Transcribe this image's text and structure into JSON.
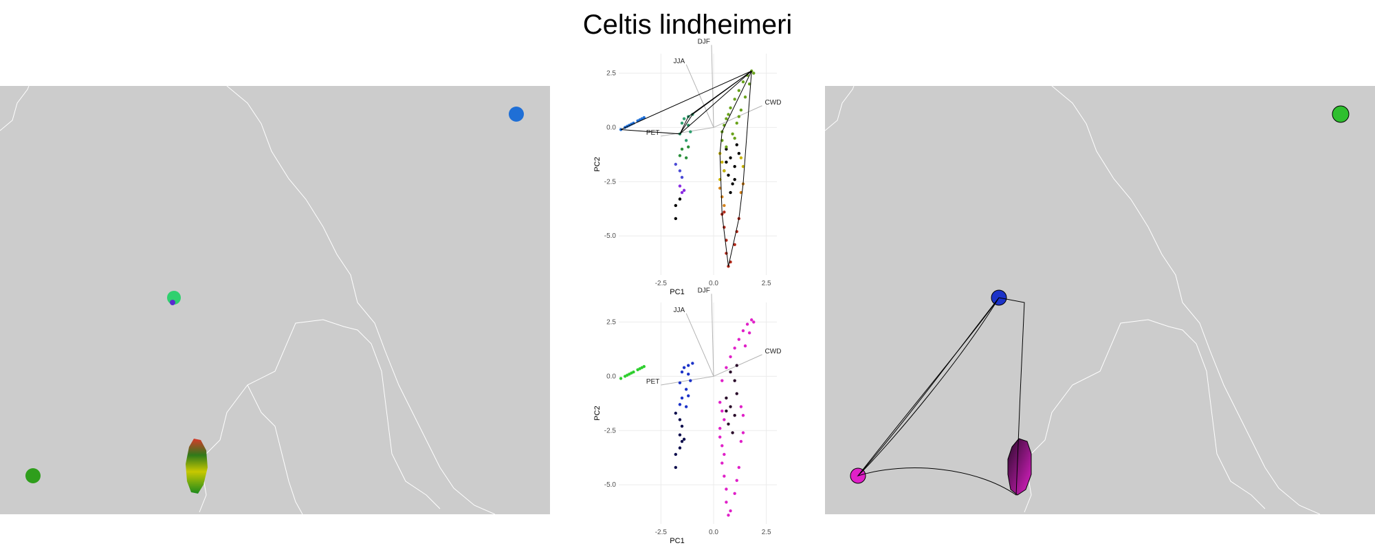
{
  "title": "Celtis lindheimeri",
  "colors": {
    "map_land": "#cccccc",
    "border": "#ffffff",
    "grid": "#ebebeb",
    "vector": "#b3b3b3",
    "hull": "#000000"
  },
  "chart_data": [
    {
      "type": "scatter",
      "panel": "top",
      "title": "",
      "xlabel": "PC1",
      "ylabel": "PC2",
      "xlim": [
        -4.5,
        3.0
      ],
      "ylim": [
        -6.8,
        3.4
      ],
      "x_ticks": [
        "-2.5",
        "0.0",
        "2.5"
      ],
      "y_ticks": [
        "2.5",
        "0.0",
        "-2.5",
        "-5.0"
      ],
      "vectors": [
        {
          "label": "DJF",
          "x": -0.1,
          "y": 3.8
        },
        {
          "label": "JJA",
          "x": -1.3,
          "y": 2.9
        },
        {
          "label": "CWD",
          "x": 2.3,
          "y": 1.0
        },
        {
          "label": "PET",
          "x": -2.5,
          "y": -0.4
        }
      ],
      "series": [
        {
          "color": "#1f6fd6",
          "points": [
            [
              -4.4,
              -0.1
            ],
            [
              -4.1,
              0.05
            ],
            [
              -3.8,
              0.2
            ],
            [
              -3.5,
              0.35
            ],
            [
              -3.3,
              0.45
            ],
            [
              -4.2,
              0.0
            ],
            [
              -3.9,
              0.15
            ],
            [
              -3.6,
              0.3
            ],
            [
              -3.4,
              0.4
            ],
            [
              -4.0,
              0.1
            ]
          ]
        },
        {
          "color": "#2e9e6e",
          "points": [
            [
              -1.4,
              0.4
            ],
            [
              -1.2,
              0.1
            ],
            [
              -1.6,
              -0.3
            ],
            [
              -1.3,
              -0.6
            ],
            [
              -1.1,
              -0.2
            ],
            [
              -1.5,
              0.2
            ],
            [
              -1.0,
              0.6
            ],
            [
              -1.2,
              0.5
            ]
          ]
        },
        {
          "color": "#2a8f3a",
          "points": [
            [
              -1.5,
              -1.0
            ],
            [
              -1.3,
              -1.4
            ],
            [
              -1.2,
              -0.9
            ],
            [
              -1.6,
              -1.3
            ]
          ]
        },
        {
          "color": "#4b4bd6",
          "points": [
            [
              -1.8,
              -1.7
            ],
            [
              -1.6,
              -2.0
            ],
            [
              -1.5,
              -2.3
            ]
          ]
        },
        {
          "color": "#8a2be2",
          "points": [
            [
              -1.6,
              -2.7
            ],
            [
              -1.4,
              -2.9
            ],
            [
              -1.5,
              -3.0
            ]
          ]
        },
        {
          "color": "#000000",
          "points": [
            [
              -1.8,
              -3.6
            ],
            [
              -1.8,
              -4.2
            ],
            [
              -1.6,
              -3.3
            ],
            [
              0.6,
              -1.0
            ],
            [
              0.8,
              -1.4
            ],
            [
              1.0,
              -1.8
            ],
            [
              0.7,
              -2.2
            ],
            [
              0.9,
              -2.6
            ],
            [
              1.1,
              -0.8
            ],
            [
              0.6,
              -1.6
            ],
            [
              1.0,
              -2.4
            ],
            [
              0.8,
              -3.0
            ],
            [
              0.5,
              -2.0
            ],
            [
              1.2,
              -1.2
            ]
          ]
        },
        {
          "color": "#6aa31c",
          "points": [
            [
              0.4,
              -0.2
            ],
            [
              0.6,
              0.4
            ],
            [
              0.8,
              0.9
            ],
            [
              1.0,
              1.3
            ],
            [
              1.2,
              1.7
            ],
            [
              1.4,
              2.1
            ],
            [
              1.6,
              2.4
            ],
            [
              1.8,
              2.6
            ],
            [
              0.5,
              0.1
            ],
            [
              0.7,
              0.6
            ],
            [
              0.9,
              -0.3
            ],
            [
              1.1,
              0.2
            ],
            [
              1.3,
              0.8
            ],
            [
              1.5,
              1.4
            ],
            [
              1.7,
              2.0
            ],
            [
              1.9,
              2.5
            ],
            [
              0.4,
              -0.6
            ],
            [
              0.6,
              -0.9
            ],
            [
              1.0,
              -0.5
            ],
            [
              1.2,
              0.5
            ]
          ]
        },
        {
          "color": "#c8b400",
          "points": [
            [
              0.3,
              -1.2
            ],
            [
              0.4,
              -1.6
            ],
            [
              0.5,
              -2.0
            ],
            [
              1.3,
              -1.4
            ],
            [
              1.4,
              -1.8
            ],
            [
              0.3,
              -2.4
            ]
          ]
        },
        {
          "color": "#d4831d",
          "points": [
            [
              0.3,
              -2.8
            ],
            [
              0.4,
              -3.2
            ],
            [
              1.4,
              -2.6
            ],
            [
              1.3,
              -3.0
            ],
            [
              0.5,
              -3.6
            ]
          ]
        },
        {
          "color": "#b22a1a",
          "points": [
            [
              0.4,
              -4.0
            ],
            [
              0.5,
              -4.6
            ],
            [
              0.6,
              -5.2
            ],
            [
              0.6,
              -5.8
            ],
            [
              0.7,
              -6.4
            ],
            [
              0.8,
              -6.2
            ],
            [
              1.0,
              -5.4
            ],
            [
              1.1,
              -4.8
            ],
            [
              1.2,
              -4.2
            ],
            [
              0.5,
              -3.9
            ]
          ]
        }
      ]
    },
    {
      "type": "scatter",
      "panel": "bottom",
      "title": "",
      "xlabel": "PC1",
      "ylabel": "PC2",
      "xlim": [
        -4.5,
        3.0
      ],
      "ylim": [
        -6.8,
        3.4
      ],
      "x_ticks": [
        "-2.5",
        "0.0",
        "2.5"
      ],
      "y_ticks": [
        "2.5",
        "0.0",
        "-2.5",
        "-5.0"
      ],
      "vectors": [
        {
          "label": "DJF",
          "x": -0.1,
          "y": 3.8
        },
        {
          "label": "JJA",
          "x": -1.3,
          "y": 2.9
        },
        {
          "label": "CWD",
          "x": 2.3,
          "y": 1.0
        },
        {
          "label": "PET",
          "x": -2.5,
          "y": -0.4
        }
      ],
      "series": [
        {
          "color": "#2fcf2f",
          "points": [
            [
              -4.4,
              -0.1
            ],
            [
              -4.1,
              0.05
            ],
            [
              -3.8,
              0.2
            ],
            [
              -3.5,
              0.35
            ],
            [
              -3.3,
              0.45
            ],
            [
              -4.2,
              0.0
            ],
            [
              -3.9,
              0.15
            ],
            [
              -3.6,
              0.3
            ],
            [
              -3.4,
              0.4
            ],
            [
              -4.0,
              0.1
            ]
          ]
        },
        {
          "color": "#1c33c8",
          "points": [
            [
              -1.4,
              0.4
            ],
            [
              -1.2,
              0.1
            ],
            [
              -1.6,
              -0.3
            ],
            [
              -1.3,
              -0.6
            ],
            [
              -1.1,
              -0.2
            ],
            [
              -1.5,
              0.2
            ],
            [
              -1.0,
              0.6
            ],
            [
              -1.2,
              0.5
            ],
            [
              -1.5,
              -1.0
            ],
            [
              -1.3,
              -1.4
            ],
            [
              -1.2,
              -0.9
            ],
            [
              -1.6,
              -1.3
            ]
          ]
        },
        {
          "color": "#0d0d4d",
          "points": [
            [
              -1.8,
              -1.7
            ],
            [
              -1.6,
              -2.0
            ],
            [
              -1.5,
              -2.3
            ],
            [
              -1.6,
              -2.7
            ],
            [
              -1.4,
              -2.9
            ],
            [
              -1.5,
              -3.0
            ],
            [
              -1.8,
              -3.6
            ],
            [
              -1.8,
              -4.2
            ],
            [
              -1.6,
              -3.3
            ]
          ]
        },
        {
          "color": "#e020c8",
          "points": [
            [
              0.4,
              -0.2
            ],
            [
              0.6,
              0.4
            ],
            [
              0.8,
              0.9
            ],
            [
              1.0,
              1.3
            ],
            [
              1.2,
              1.7
            ],
            [
              1.4,
              2.1
            ],
            [
              1.6,
              2.4
            ],
            [
              1.8,
              2.6
            ],
            [
              1.7,
              2.0
            ],
            [
              1.9,
              2.5
            ],
            [
              1.5,
              1.4
            ],
            [
              0.3,
              -1.2
            ],
            [
              0.4,
              -1.6
            ],
            [
              0.5,
              -2.0
            ],
            [
              1.3,
              -1.4
            ],
            [
              1.4,
              -1.8
            ],
            [
              0.3,
              -2.4
            ],
            [
              0.3,
              -2.8
            ],
            [
              0.4,
              -3.2
            ],
            [
              1.4,
              -2.6
            ],
            [
              1.3,
              -3.0
            ],
            [
              0.5,
              -3.6
            ],
            [
              0.4,
              -4.0
            ],
            [
              0.5,
              -4.6
            ],
            [
              0.6,
              -5.2
            ],
            [
              0.6,
              -5.8
            ],
            [
              0.7,
              -6.4
            ],
            [
              0.8,
              -6.2
            ],
            [
              1.0,
              -5.4
            ],
            [
              1.1,
              -4.8
            ],
            [
              1.2,
              -4.2
            ]
          ]
        },
        {
          "color": "#2a0a2a",
          "points": [
            [
              0.6,
              -1.0
            ],
            [
              0.8,
              -1.4
            ],
            [
              1.0,
              -1.8
            ],
            [
              0.7,
              -2.2
            ],
            [
              0.9,
              -2.6
            ],
            [
              1.1,
              -0.8
            ],
            [
              0.6,
              -1.6
            ],
            [
              1.0,
              -0.2
            ],
            [
              0.8,
              0.2
            ],
            [
              1.1,
              0.5
            ]
          ]
        }
      ]
    }
  ]
}
